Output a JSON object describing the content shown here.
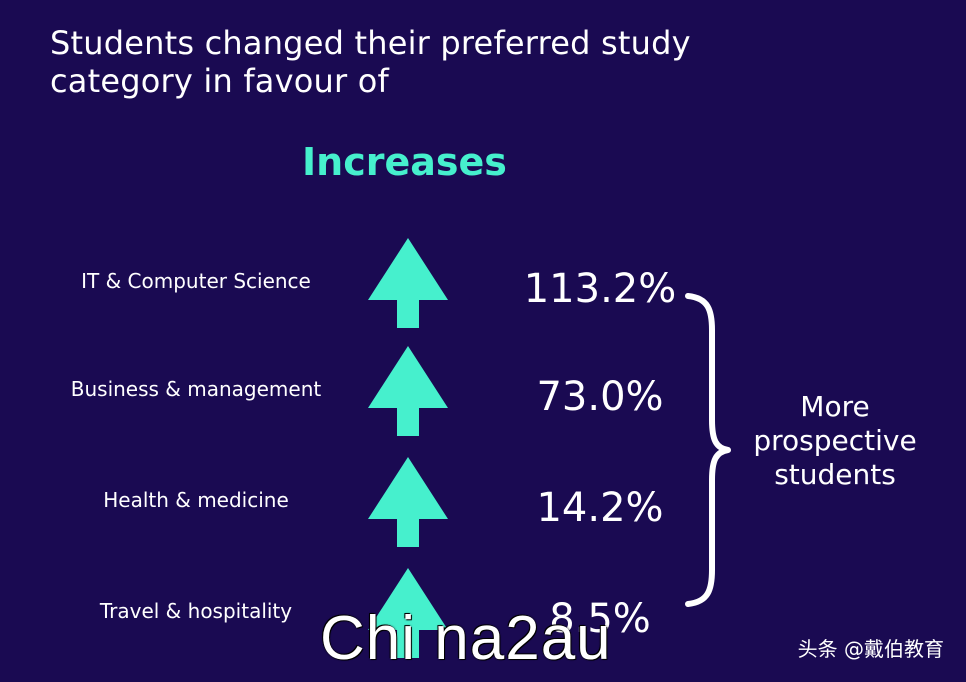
{
  "headline": {
    "line1": "Students changed their preferred study",
    "line2": "category in favour of"
  },
  "section_title": "Increases",
  "brace_label": [
    "More",
    "prospective",
    "students"
  ],
  "watermark": "Chi na2au",
  "credit": "头条 @戴伯教育",
  "colors": {
    "background": "#1a0a52",
    "accent": "#46f0cd",
    "text": "#ffffff"
  },
  "icons": {
    "arrow": "up-arrow-icon",
    "brace": "right-curly-brace-icon"
  },
  "chart_data": {
    "type": "table",
    "title": "Increases",
    "categories": [
      "IT & Computer Science",
      "Business & management",
      "Health & medicine",
      "Travel & hospitality"
    ],
    "values": [
      113.2,
      73.0,
      14.2,
      8.5
    ],
    "value_labels": [
      "113.2%",
      "73.0%",
      "14.2%",
      "8.5%"
    ],
    "direction": "up"
  }
}
